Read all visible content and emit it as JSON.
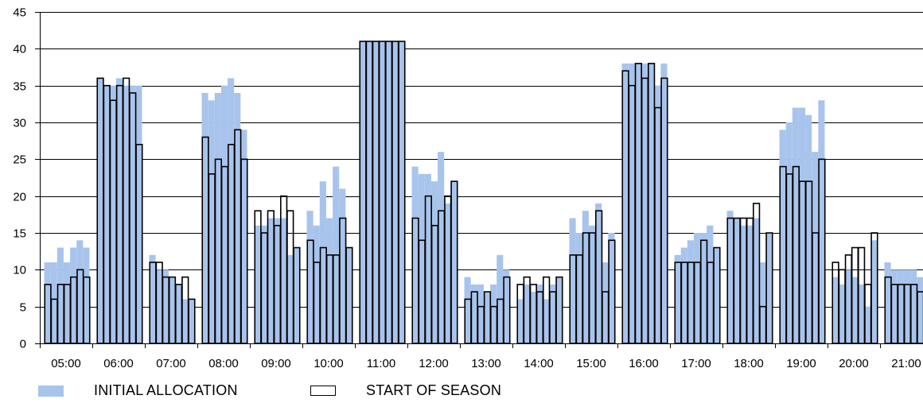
{
  "chart_data": {
    "type": "bar",
    "ylim": [
      0,
      45
    ],
    "yticks": [
      0,
      5,
      10,
      15,
      20,
      25,
      30,
      35,
      40,
      45
    ],
    "grid": true,
    "legend_position": "bottom",
    "categories": [
      "05:00",
      "06:00",
      "07:00",
      "08:00",
      "09:00",
      "10:00",
      "11:00",
      "12:00",
      "13:00",
      "14:00",
      "15:00",
      "16:00",
      "17:00",
      "18:00",
      "19:00",
      "20:00",
      "21:00"
    ],
    "series": [
      {
        "name": "INITIAL ALLOCATION",
        "style": "filled",
        "color": "#a9c4ec",
        "groups": [
          [
            11,
            11,
            13,
            11,
            13,
            14,
            13
          ],
          [
            36,
            35,
            35,
            36,
            35,
            35,
            35
          ],
          [
            12,
            10,
            10,
            9,
            8,
            6,
            6
          ],
          [
            34,
            33,
            34,
            35,
            36,
            34,
            29
          ],
          [
            16,
            16,
            17,
            17,
            17,
            12,
            13
          ],
          [
            18,
            16,
            22,
            17,
            24,
            21,
            13
          ],
          [
            41,
            41,
            41,
            41,
            41,
            41,
            41
          ],
          [
            24,
            23,
            23,
            22,
            26,
            19,
            22
          ],
          [
            9,
            8,
            8,
            7,
            8,
            12,
            10
          ],
          [
            6,
            8,
            7,
            8,
            6,
            8,
            9
          ],
          [
            17,
            15,
            18,
            16,
            19,
            11,
            15
          ],
          [
            38,
            38,
            38,
            38,
            38,
            35,
            38
          ],
          [
            12,
            13,
            14,
            15,
            15,
            16,
            13
          ],
          [
            18,
            17,
            16,
            16,
            17,
            11,
            15
          ],
          [
            29,
            30,
            32,
            32,
            31,
            26,
            33
          ],
          [
            9,
            8,
            10,
            9,
            8,
            5,
            14
          ],
          [
            11,
            10,
            10,
            10,
            10,
            9,
            11
          ]
        ]
      },
      {
        "name": "START OF SEASON",
        "style": "outline",
        "color": "#000000",
        "groups": [
          [
            8,
            6,
            8,
            8,
            9,
            10,
            9
          ],
          [
            36,
            35,
            33,
            35,
            36,
            34,
            27
          ],
          [
            11,
            11,
            9,
            9,
            8,
            9,
            6
          ],
          [
            28,
            23,
            25,
            24,
            27,
            29,
            25
          ],
          [
            18,
            15,
            18,
            16,
            20,
            18,
            13
          ],
          [
            14,
            11,
            13,
            12,
            12,
            17,
            13
          ],
          [
            41,
            41,
            41,
            41,
            41,
            41,
            41
          ],
          [
            17,
            14,
            20,
            16,
            18,
            20,
            22
          ],
          [
            6,
            7,
            5,
            7,
            5,
            6,
            9
          ],
          [
            8,
            9,
            8,
            7,
            9,
            7,
            9
          ],
          [
            12,
            12,
            15,
            15,
            18,
            7,
            14
          ],
          [
            37,
            35,
            38,
            36,
            38,
            32,
            36
          ],
          [
            11,
            11,
            11,
            11,
            14,
            11,
            13
          ],
          [
            17,
            17,
            17,
            17,
            19,
            5,
            15
          ],
          [
            24,
            23,
            24,
            22,
            22,
            15,
            25
          ],
          [
            11,
            10,
            12,
            13,
            13,
            8,
            15
          ],
          [
            9,
            8,
            8,
            8,
            8,
            7,
            8
          ]
        ]
      }
    ],
    "legend": [
      {
        "label": "INITIAL ALLOCATION",
        "swatch": "filled",
        "color": "#a9c4ec"
      },
      {
        "label": "START OF SEASON",
        "swatch": "outline",
        "color": "#000000"
      }
    ]
  }
}
